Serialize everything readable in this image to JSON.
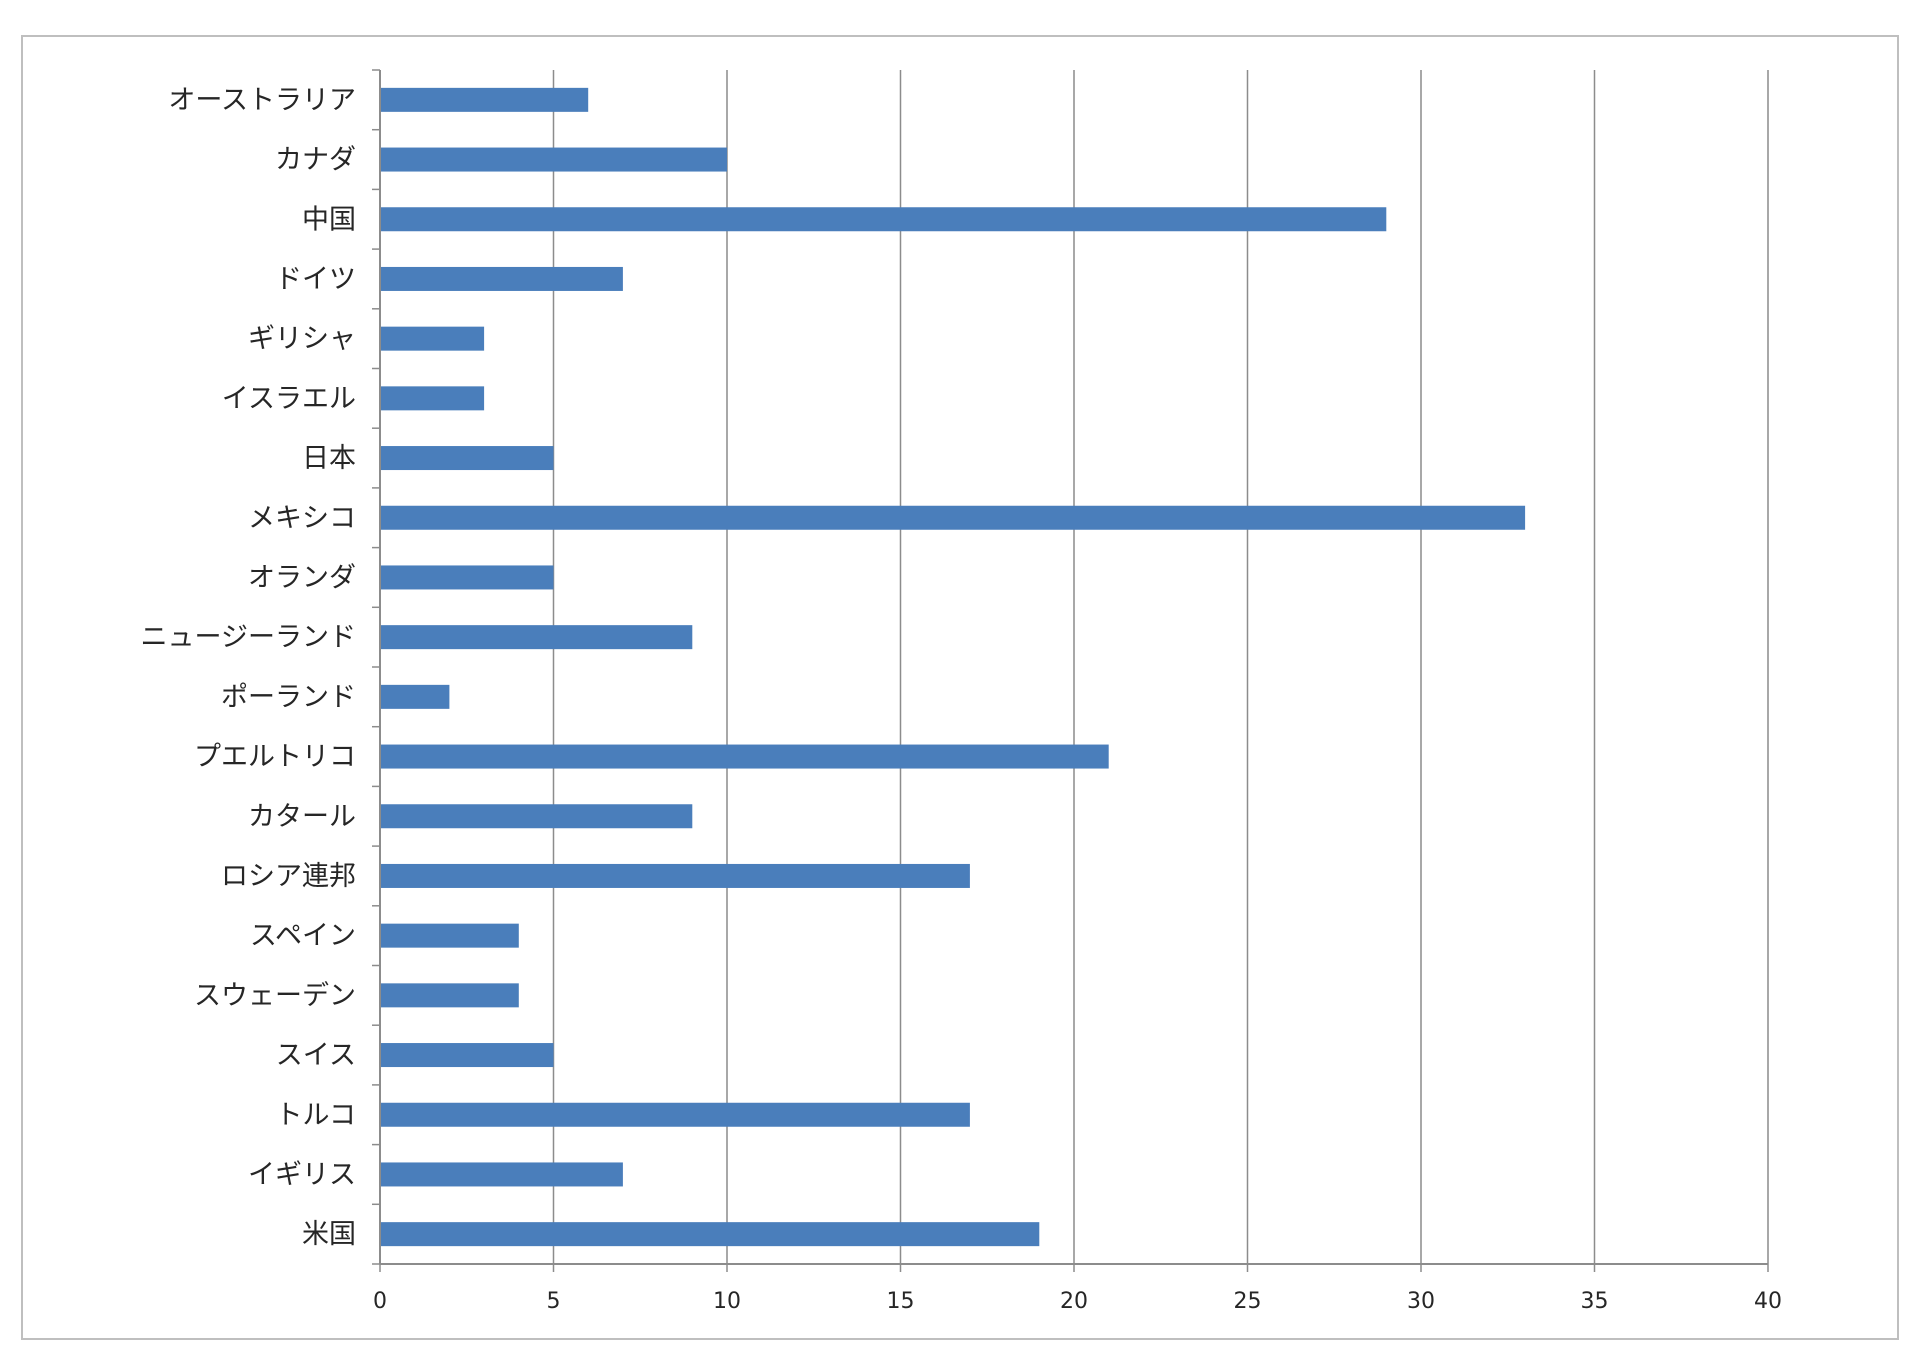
{
  "chart_data": {
    "type": "bar",
    "orientation": "horizontal",
    "categories": [
      "オーストラリア",
      "カナダ",
      "中国",
      "ドイツ",
      "ギリシャ",
      "イスラエル",
      "日本",
      "メキシコ",
      "オランダ",
      "ニュージーランド",
      "ポーランド",
      "プエルトリコ",
      "カタール",
      "ロシア連邦",
      "スペイン",
      "スウェーデン",
      "スイス",
      "トルコ",
      "イギリス",
      "米国"
    ],
    "values": [
      6,
      10,
      29,
      7,
      3,
      3,
      5,
      33,
      5,
      9,
      2,
      21,
      9,
      17,
      4,
      4,
      5,
      17,
      7,
      19
    ],
    "xlim": [
      0,
      40
    ],
    "xticks": [
      "0",
      "5",
      "10",
      "15",
      "20",
      "25",
      "30",
      "35",
      "40"
    ],
    "title": "",
    "xlabel": "",
    "ylabel": "",
    "grid": "vertical",
    "legend": "none",
    "bar_color": "#4a7ebb",
    "grid_color": "#8c8c8c",
    "axis_color": "#8c8c8c"
  }
}
